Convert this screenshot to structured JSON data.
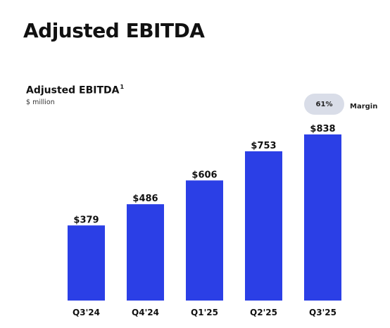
{
  "page": {
    "title": "Adjusted EBITDA"
  },
  "chart_data": {
    "type": "bar",
    "title": "Adjusted EBITDA",
    "title_footnote": "1",
    "subtitle": "$ million",
    "categories": [
      "Q3'24",
      "Q4'24",
      "Q1'25",
      "Q2'25",
      "Q3'25"
    ],
    "values": [
      379,
      486,
      606,
      753,
      838
    ],
    "data_labels": [
      "$379",
      "$486",
      "$606",
      "$753",
      "$838"
    ],
    "ylim": [
      0,
      838
    ],
    "grid": false,
    "bar_color": "#2b3fe6",
    "annotation": {
      "category": "Q3'25",
      "value_label": "61%",
      "label": "Margin"
    }
  }
}
